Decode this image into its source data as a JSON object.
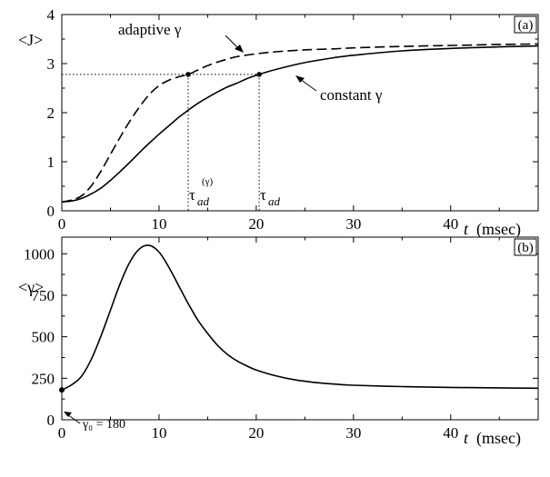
{
  "chart_data": [
    {
      "type": "line",
      "panel_label": "(a)",
      "ylabel": "<J>",
      "xlabel_var": "t",
      "xlabel_unit": "(msec)",
      "xlim": [
        0,
        49
      ],
      "ylim": [
        0,
        4
      ],
      "xticks": [
        "0",
        "10",
        "20",
        "30",
        "40"
      ],
      "yticks": [
        "0",
        "1",
        "2",
        "3",
        "4"
      ],
      "series": [
        {
          "name": "adaptive γ",
          "style": "dashed",
          "x": [
            0,
            1,
            2,
            3,
            4,
            5,
            6,
            7,
            8,
            9,
            10,
            11,
            12,
            13,
            14,
            15,
            16,
            17,
            18,
            20,
            22,
            25,
            28,
            30,
            35,
            40,
            45,
            49
          ],
          "y": [
            0.18,
            0.22,
            0.3,
            0.5,
            0.8,
            1.15,
            1.5,
            1.83,
            2.12,
            2.37,
            2.55,
            2.66,
            2.73,
            2.78,
            2.87,
            2.96,
            3.03,
            3.09,
            3.14,
            3.2,
            3.24,
            3.28,
            3.3,
            3.32,
            3.35,
            3.37,
            3.39,
            3.4
          ]
        },
        {
          "name": "constant γ",
          "style": "solid",
          "x": [
            0,
            1,
            2,
            3,
            4,
            5,
            6,
            7,
            8,
            9,
            10,
            11,
            12,
            13,
            14,
            15,
            16,
            17,
            18,
            19,
            20.3,
            22,
            25,
            28,
            30,
            35,
            40,
            45,
            49
          ],
          "y": [
            0.18,
            0.2,
            0.25,
            0.34,
            0.46,
            0.62,
            0.8,
            0.99,
            1.19,
            1.38,
            1.56,
            1.73,
            1.9,
            2.05,
            2.19,
            2.31,
            2.42,
            2.52,
            2.6,
            2.69,
            2.78,
            2.88,
            3.02,
            3.12,
            3.17,
            3.26,
            3.31,
            3.34,
            3.36
          ]
        }
      ],
      "reference_y": 2.78,
      "reference_x": [
        13,
        20.3
      ],
      "annotations": {
        "adaptive": "adaptive γ",
        "constant": "constant γ",
        "tau_gamma": "τ",
        "tau_gamma_sub": "ad",
        "tau_gamma_sup": "(γ)",
        "tau": "τ",
        "tau_sub": "ad"
      }
    },
    {
      "type": "line",
      "panel_label": "(b)",
      "ylabel": "<γ>",
      "xlabel_var": "t",
      "xlabel_unit": "(msec)",
      "xlim": [
        0,
        49
      ],
      "ylim": [
        0,
        1100
      ],
      "xticks": [
        "0",
        "10",
        "20",
        "30",
        "40"
      ],
      "yticks": [
        "0",
        "250",
        "500",
        "750",
        "1000"
      ],
      "series": [
        {
          "name": "<γ>",
          "style": "solid",
          "x": [
            0,
            1,
            2,
            3,
            4,
            5,
            6,
            7,
            8,
            9,
            10,
            11,
            12,
            13,
            14,
            15,
            16,
            17,
            18,
            19,
            20,
            22,
            24,
            26,
            28,
            30,
            35,
            40,
            45,
            49
          ],
          "y": [
            180,
            210,
            260,
            360,
            500,
            660,
            820,
            950,
            1030,
            1050,
            1010,
            920,
            810,
            700,
            600,
            520,
            450,
            395,
            355,
            325,
            300,
            265,
            240,
            225,
            215,
            208,
            200,
            195,
            192,
            190
          ]
        }
      ],
      "annotation_gamma0": "γ₀ = 180"
    }
  ]
}
